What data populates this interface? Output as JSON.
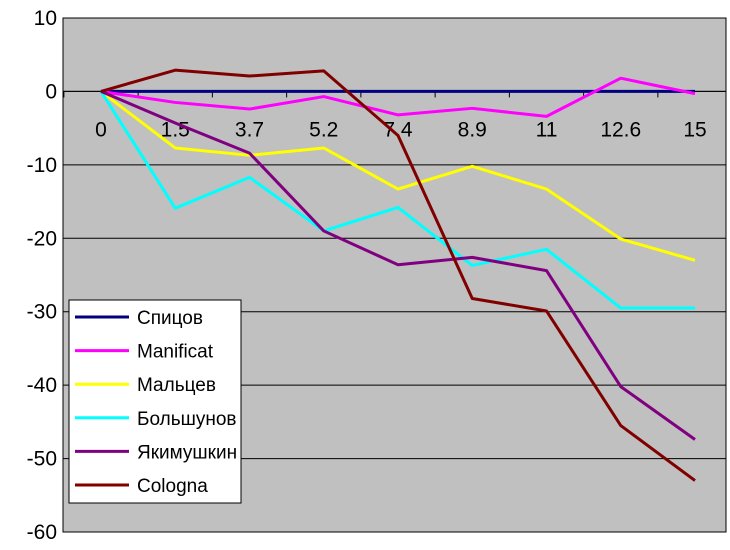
{
  "chart_data": {
    "type": "line",
    "title": "",
    "xlabel": "",
    "ylabel": "",
    "categories": [
      "0",
      "1.5",
      "3.7",
      "5.2",
      "7.4",
      "8.9",
      "11",
      "12.6",
      "15"
    ],
    "ylim": [
      -60,
      10
    ],
    "yticks": [
      10,
      0,
      -10,
      -20,
      -30,
      -40,
      -50,
      -60
    ],
    "grid": true,
    "legend_position": "bottom-left",
    "plot_background": "#c0c0c0",
    "series": [
      {
        "name": "Спицов",
        "color": "#000080",
        "values": [
          0,
          0,
          0,
          0,
          0,
          0,
          0,
          0,
          0
        ]
      },
      {
        "name": "Manificat",
        "color": "#ff00ff",
        "values": [
          0,
          -1.5,
          -2.4,
          -0.7,
          -3.2,
          -2.3,
          -3.4,
          1.8,
          -0.3
        ]
      },
      {
        "name": "Мальцев",
        "color": "#ffff00",
        "values": [
          0,
          -7.7,
          -8.7,
          -7.7,
          -13.3,
          -10.2,
          -13.3,
          -20.1,
          -23.0
        ]
      },
      {
        "name": "Большунов",
        "color": "#00ffff",
        "values": [
          0,
          -15.9,
          -11.7,
          -19.0,
          -15.8,
          -23.7,
          -21.5,
          -29.5,
          -29.5
        ]
      },
      {
        "name": "Якимушкин",
        "color": "#800080",
        "values": [
          0,
          -4.3,
          -8.4,
          -19.0,
          -23.6,
          -22.6,
          -24.4,
          -40.2,
          -47.4
        ]
      },
      {
        "name": "Cologna",
        "color": "#800000",
        "values": [
          0,
          2.9,
          2.1,
          2.8,
          -6.0,
          -28.2,
          -29.9,
          -45.5,
          -53.0
        ]
      }
    ]
  }
}
